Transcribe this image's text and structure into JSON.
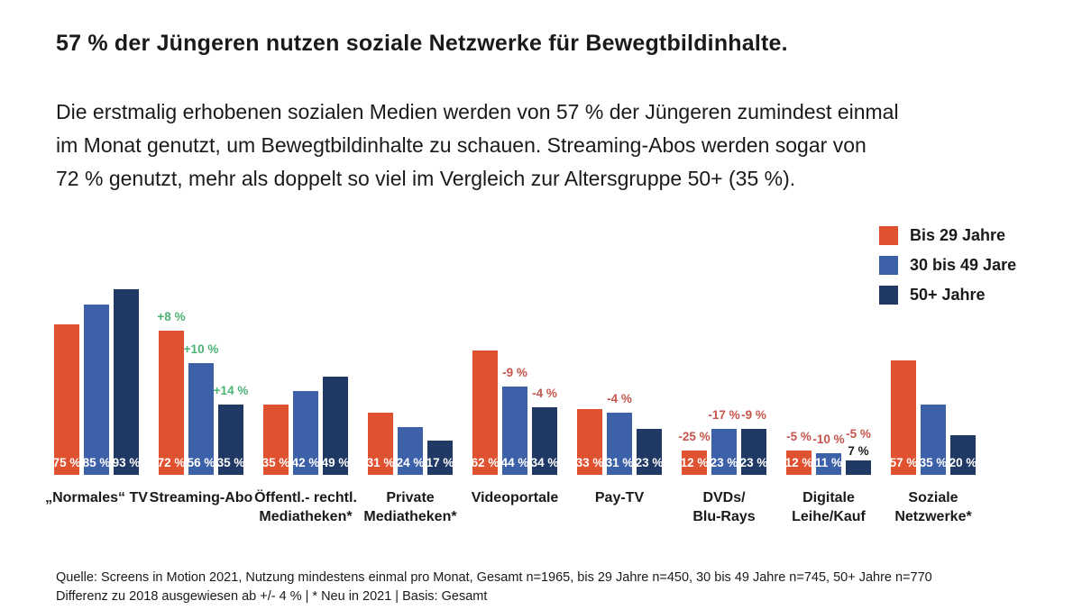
{
  "headline": "57 % der Jüngeren nutzen soziale Netzwerke für Bewegtbildinhalte.",
  "intro": {
    "line1": "Die erstmalig erhobenen sozialen Medien werden von 57 % der Jüngeren zumindest einmal",
    "line2": "im Monat genutzt, um Bewegtbildinhalte zu schauen. Streaming-Abos werden sogar von",
    "line3": "72 % genutzt, mehr als doppelt so viel im Vergleich zur Altersgruppe 50+ (35 %)."
  },
  "legend": {
    "items": [
      {
        "label": "Bis 29 Jahre",
        "color": "#e0512f"
      },
      {
        "label": "30 bis 49 Jare",
        "color": "#3c61a9"
      },
      {
        "label": "50+ Jahre",
        "color": "#1f3864"
      }
    ]
  },
  "colors": {
    "positive_change": "#4db374",
    "negative_change": "#c5544b",
    "value_label_inside": "#ffffff",
    "value_label_outside": "#1a1a1a"
  },
  "chart_data": {
    "type": "bar",
    "unit": "%",
    "ylim": [
      0,
      100
    ],
    "legend_position": "top-right",
    "grid": false,
    "categories": [
      [
        "„Normales“ TV"
      ],
      [
        "Streaming-Abo"
      ],
      [
        "Öffentl.- rechtl.",
        "Mediatheken*"
      ],
      [
        "Private",
        "Mediatheken*"
      ],
      [
        "Videoportale"
      ],
      [
        "Pay-TV"
      ],
      [
        "DVDs/",
        "Blu-Rays"
      ],
      [
        "Digitale",
        "Leihe/Kauf"
      ],
      [
        "Soziale",
        "Netzwerke*"
      ]
    ],
    "series": [
      {
        "name": "Bis 29 Jahre",
        "color": "#e0512f",
        "values": [
          75,
          72,
          35,
          31,
          62,
          33,
          12,
          12,
          57
        ],
        "changes": [
          null,
          "+8 %",
          null,
          null,
          null,
          null,
          "-25 %",
          "-5 %",
          null
        ]
      },
      {
        "name": "30 bis 49 Jare",
        "color": "#3c61a9",
        "values": [
          85,
          56,
          42,
          24,
          44,
          31,
          23,
          11,
          35
        ],
        "changes": [
          null,
          "+10 %",
          null,
          null,
          "-9 %",
          "-4 %",
          "-17 %",
          "-10 %",
          null
        ]
      },
      {
        "name": "50+ Jahre",
        "color": "#1f3864",
        "values": [
          93,
          35,
          49,
          17,
          34,
          23,
          23,
          7,
          20
        ],
        "changes": [
          null,
          "+14 %",
          null,
          null,
          "-4 %",
          null,
          "-9 %",
          "-5 %",
          null
        ]
      }
    ]
  },
  "source": {
    "line1": "Quelle: Screens in Motion 2021, Nutzung mindestens einmal pro Monat, Gesamt n=1965, bis 29 Jahre n=450, 30 bis 49 Jahre n=745, 50+ Jahre n=770",
    "line2": "Differenz zu 2018 ausgewiesen ab +/- 4 % | * Neu in 2021 | Basis: Gesamt"
  }
}
